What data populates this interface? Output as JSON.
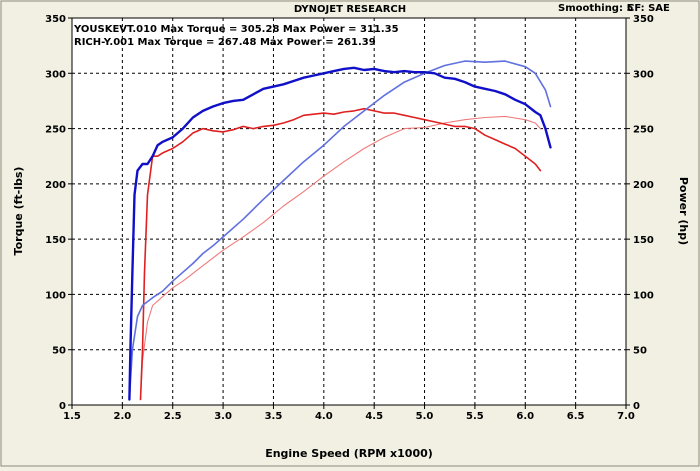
{
  "header": {
    "title": "DYNOJET RESEARCH",
    "smoothing": "Smoothing: 5",
    "cf": "CF: SAE"
  },
  "chart_data": {
    "type": "line",
    "title": "DYNOJET RESEARCH",
    "xlabel": "Engine Speed (RPM x1000)",
    "ylabel_left": "Torque (ft-lbs)",
    "ylabel_right": "Power (hp)",
    "xlim": [
      1.5,
      7.0
    ],
    "ylim": [
      0,
      350
    ],
    "x_ticks": [
      "1.5",
      "2.0",
      "2.5",
      "3.0",
      "3.5",
      "4.0",
      "4.5",
      "5.0",
      "5.5",
      "6.0",
      "6.5",
      "7.0"
    ],
    "y_ticks": [
      "0",
      "50",
      "100",
      "150",
      "200",
      "250",
      "300",
      "350"
    ],
    "grid": true,
    "annotations": [
      "YOUSKEVT.010 Max Torque = 305.28 Max Power = 311.35",
      "RICH-Y.001 Max Torque = 267.48 Max Power = 261.39"
    ],
    "colors": {
      "blue_torque": "#1010c8",
      "blue_power": "#6070e0",
      "red_torque": "#e02020",
      "red_power": "#f07a7a"
    },
    "series": [
      {
        "run": "YOUSKEVT.010",
        "measure": "torque",
        "x": [
          2.07,
          2.08,
          2.1,
          2.12,
          2.15,
          2.2,
          2.25,
          2.3,
          2.35,
          2.4,
          2.5,
          2.6,
          2.7,
          2.8,
          2.9,
          3.0,
          3.1,
          3.2,
          3.3,
          3.4,
          3.5,
          3.6,
          3.7,
          3.8,
          3.9,
          4.0,
          4.1,
          4.2,
          4.3,
          4.4,
          4.5,
          4.6,
          4.7,
          4.8,
          4.9,
          5.0,
          5.1,
          5.2,
          5.3,
          5.4,
          5.5,
          5.6,
          5.7,
          5.8,
          5.9,
          6.0,
          6.1,
          6.15,
          6.2,
          6.25
        ],
        "y": [
          5,
          50,
          120,
          190,
          212,
          218,
          218,
          225,
          235,
          238,
          242,
          250,
          260,
          266,
          270,
          273,
          275,
          276,
          281,
          286,
          288,
          290,
          293,
          296,
          298,
          300,
          302,
          304,
          305,
          303,
          304,
          302,
          301,
          302,
          301,
          301,
          300,
          296,
          295,
          292,
          288,
          286,
          284,
          281,
          276,
          272,
          265,
          262,
          250,
          233
        ]
      },
      {
        "run": "YOUSKEVT.010",
        "measure": "power",
        "x": [
          2.07,
          2.1,
          2.15,
          2.2,
          2.3,
          2.4,
          2.5,
          2.6,
          2.7,
          2.8,
          2.9,
          3.0,
          3.2,
          3.4,
          3.6,
          3.8,
          4.0,
          4.2,
          4.4,
          4.6,
          4.8,
          5.0,
          5.2,
          5.4,
          5.6,
          5.8,
          6.0,
          6.1,
          6.2,
          6.25
        ],
        "y": [
          5,
          50,
          80,
          90,
          97,
          103,
          112,
          120,
          128,
          137,
          144,
          152,
          168,
          186,
          203,
          220,
          235,
          252,
          266,
          280,
          292,
          300,
          307,
          311,
          310,
          311,
          306,
          300,
          285,
          270
        ]
      },
      {
        "run": "RICH-Y.001",
        "measure": "torque",
        "x": [
          2.18,
          2.2,
          2.22,
          2.25,
          2.3,
          2.35,
          2.4,
          2.5,
          2.6,
          2.7,
          2.8,
          2.9,
          3.0,
          3.1,
          3.2,
          3.3,
          3.4,
          3.5,
          3.6,
          3.7,
          3.8,
          3.9,
          4.0,
          4.1,
          4.2,
          4.3,
          4.4,
          4.5,
          4.6,
          4.7,
          4.8,
          4.9,
          5.0,
          5.1,
          5.2,
          5.3,
          5.4,
          5.5,
          5.6,
          5.7,
          5.8,
          5.9,
          6.0,
          6.1,
          6.15
        ],
        "y": [
          5,
          50,
          120,
          190,
          225,
          225,
          228,
          232,
          238,
          246,
          250,
          248,
          247,
          249,
          252,
          250,
          252,
          253,
          255,
          258,
          262,
          263,
          264,
          263,
          265,
          266,
          268,
          266,
          264,
          264,
          262,
          260,
          258,
          256,
          254,
          252,
          252,
          250,
          244,
          240,
          236,
          232,
          225,
          218,
          212
        ]
      },
      {
        "run": "RICH-Y.001",
        "measure": "power",
        "x": [
          2.18,
          2.2,
          2.25,
          2.3,
          2.4,
          2.5,
          2.6,
          2.7,
          2.8,
          2.9,
          3.0,
          3.2,
          3.4,
          3.6,
          3.8,
          4.0,
          4.2,
          4.4,
          4.6,
          4.8,
          5.0,
          5.2,
          5.4,
          5.6,
          5.8,
          6.0,
          6.1,
          6.15
        ],
        "y": [
          5,
          40,
          75,
          90,
          98,
          106,
          112,
          119,
          126,
          133,
          140,
          152,
          165,
          180,
          193,
          207,
          220,
          232,
          242,
          250,
          251,
          255,
          258,
          260,
          261,
          258,
          255,
          250
        ]
      }
    ]
  }
}
